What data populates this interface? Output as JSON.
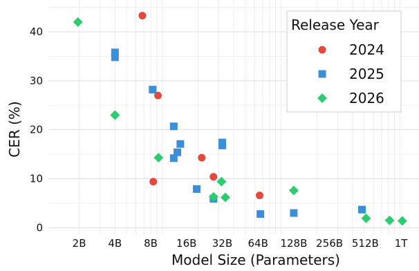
{
  "chart_data": {
    "type": "scatter",
    "xlabel": "Model Size (Parameters)",
    "ylabel": "CER (%)",
    "x_scale": "log2",
    "x_ticks": [
      {
        "value": 2,
        "label": "2B"
      },
      {
        "value": 4,
        "label": "4B"
      },
      {
        "value": 8,
        "label": "8B"
      },
      {
        "value": 16,
        "label": "16B"
      },
      {
        "value": 32,
        "label": "32B"
      },
      {
        "value": 64,
        "label": "64B"
      },
      {
        "value": 128,
        "label": "128B"
      },
      {
        "value": 256,
        "label": "256B"
      },
      {
        "value": 512,
        "label": "512B"
      },
      {
        "value": 1024,
        "label": "1T"
      }
    ],
    "y_ticks": [
      0,
      10,
      20,
      30,
      40
    ],
    "xlim": [
      1.1,
      1450
    ],
    "ylim": [
      -1.5,
      46.5
    ],
    "grid": true,
    "legend": {
      "title": "Release Year",
      "placement": "top-right"
    },
    "series": [
      {
        "name": "2024",
        "marker": "circle",
        "color": "#e34a3d",
        "points": [
          {
            "x": 6.8,
            "y": 43.3
          },
          {
            "x": 9.2,
            "y": 27.0
          },
          {
            "x": 8.4,
            "y": 9.4
          },
          {
            "x": 21.5,
            "y": 14.3
          },
          {
            "x": 27.0,
            "y": 10.4
          },
          {
            "x": 32.0,
            "y": 16.9
          },
          {
            "x": 66.0,
            "y": 6.6
          }
        ]
      },
      {
        "name": "2025",
        "marker": "square",
        "color": "#3b8fd9",
        "points": [
          {
            "x": 4.0,
            "y": 35.8
          },
          {
            "x": 4.0,
            "y": 34.8
          },
          {
            "x": 8.3,
            "y": 28.2
          },
          {
            "x": 12.5,
            "y": 20.7
          },
          {
            "x": 12.5,
            "y": 14.2
          },
          {
            "x": 13.4,
            "y": 15.4
          },
          {
            "x": 14.2,
            "y": 17.1
          },
          {
            "x": 19.5,
            "y": 7.9
          },
          {
            "x": 27.0,
            "y": 5.9
          },
          {
            "x": 32.0,
            "y": 17.4
          },
          {
            "x": 32.0,
            "y": 16.8
          },
          {
            "x": 67.0,
            "y": 2.8
          },
          {
            "x": 128.0,
            "y": 3.0
          },
          {
            "x": 480.0,
            "y": 3.7
          }
        ]
      },
      {
        "name": "2026",
        "marker": "diamond",
        "color": "#2ecc71",
        "points": [
          {
            "x": 1.95,
            "y": 42.0
          },
          {
            "x": 4.0,
            "y": 23.0
          },
          {
            "x": 9.3,
            "y": 14.3
          },
          {
            "x": 27.0,
            "y": 6.3
          },
          {
            "x": 31.5,
            "y": 9.4
          },
          {
            "x": 34.0,
            "y": 6.2
          },
          {
            "x": 128.0,
            "y": 7.6
          },
          {
            "x": 520.0,
            "y": 1.9
          },
          {
            "x": 820.0,
            "y": 1.5
          },
          {
            "x": 1050.0,
            "y": 1.4
          }
        ]
      }
    ]
  }
}
